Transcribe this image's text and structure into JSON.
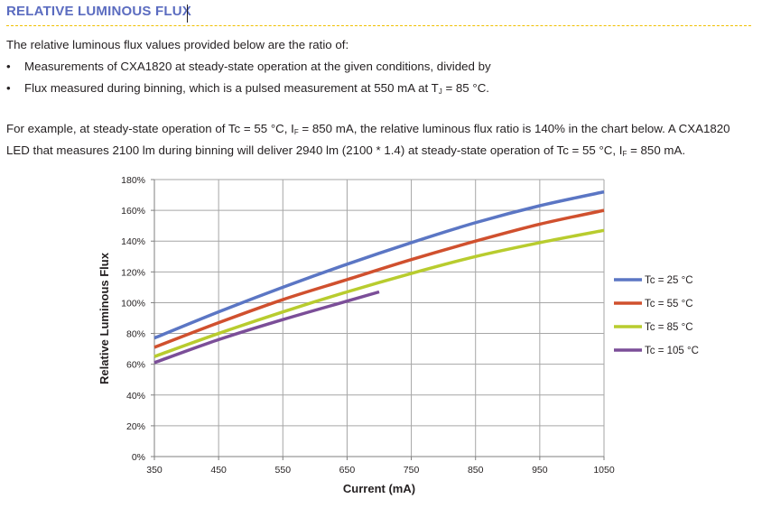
{
  "section": {
    "title": "RELATIVE LUMINOUS FLUX"
  },
  "intro": {
    "line1": "The relative luminous flux values provided below are the ratio of:",
    "bullet1": "Measurements of CXA1820 at steady-state operation at the given conditions, divided by",
    "bullet2_a": "Flux measured during binning, which is a pulsed measurement at 550 mA at T",
    "bullet2_sub": "J",
    "bullet2_b": " = 85 °C."
  },
  "example": {
    "l1_a": "For example, at steady-state operation of Tc = 55 °C, I",
    "l1_sub": "F",
    "l1_b": " = 850 mA, the relative luminous flux ratio is 140% in the chart below. A CXA1820",
    "l2_a": "LED that measures 2100 lm during binning will deliver 2940 lm (2100 * 1.4) at steady-state operation of Tc = 55 °C, I",
    "l2_sub": "F",
    "l2_b": " = 850 mA."
  },
  "chart_data": {
    "type": "line",
    "xlabel": "Current (mA)",
    "ylabel": "Relative Luminous Flux",
    "xlim": [
      350,
      1050
    ],
    "ylim": [
      0,
      180
    ],
    "x_ticks": [
      350,
      450,
      550,
      650,
      750,
      850,
      950,
      1050
    ],
    "y_ticks": [
      0,
      20,
      40,
      60,
      80,
      100,
      120,
      140,
      160,
      180
    ],
    "y_tick_labels": [
      "0%",
      "20%",
      "40%",
      "60%",
      "80%",
      "100%",
      "120%",
      "140%",
      "160%",
      "180%"
    ],
    "grid": true,
    "legend_position": "right",
    "series": [
      {
        "name": "Tc = 25 °C",
        "color": "#5b76c4",
        "x": [
          350,
          450,
          550,
          650,
          750,
          850,
          950,
          1050
        ],
        "y": [
          77,
          94,
          110,
          125,
          139,
          152,
          163,
          172
        ]
      },
      {
        "name": "Tc = 55 °C",
        "color": "#d0502e",
        "x": [
          350,
          450,
          550,
          650,
          750,
          850,
          950,
          1050
        ],
        "y": [
          71,
          87,
          102,
          115,
          128,
          140,
          151,
          160
        ]
      },
      {
        "name": "Tc = 85 °C",
        "color": "#b8cc2e",
        "x": [
          350,
          450,
          550,
          650,
          750,
          850,
          950,
          1050
        ],
        "y": [
          65,
          80,
          94,
          107,
          119,
          130,
          139,
          147
        ]
      },
      {
        "name": "Tc = 105 °C",
        "color": "#7b4e98",
        "x": [
          350,
          450,
          550,
          650,
          700
        ],
        "y": [
          61,
          76,
          89,
          101,
          107
        ]
      }
    ]
  }
}
